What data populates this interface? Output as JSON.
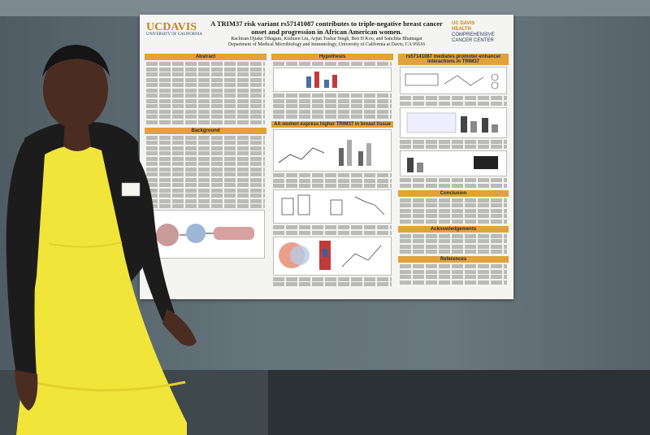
{
  "poster": {
    "logo_left": "UCDAVIS",
    "logo_left_sub": "UNIVERSITY OF CALIFORNIA",
    "logo_right_top": "UC DAVIS",
    "logo_right_mid": "HEALTH",
    "logo_right_bot": "COMPREHENSIVE CANCER CENTER",
    "title": "A TRIM37 risk variant rs57141087 contributes to triple-negative breast cancer onset and progression in African American women.",
    "authors": "Rachisan Djiake Tihagam, Kizhuen Liu, Arjun Tushar Singh, Ben H Koo, and Sanchita Bhatnagar",
    "dept": "Department of Medical Microbiology and Immunology, University of California at Davis, CA 95616",
    "sections": {
      "abstract": "Abstract",
      "background": "Background",
      "hypothesis": "Hypothesis",
      "aa_women": "AA women express higher TRIM37 in breast tissue",
      "mediates": "rs57141087 mediates promoter-enhancer interactions in TRIM37",
      "conclusion": "Conclusion",
      "acknowledgements": "Acknowledgements",
      "references": "References"
    }
  },
  "colors": {
    "header_bar": "#e0a23a",
    "ucdavis_gold": "#c4861a",
    "dress": "#f1e53a",
    "cardigan": "#1c1c1c"
  }
}
